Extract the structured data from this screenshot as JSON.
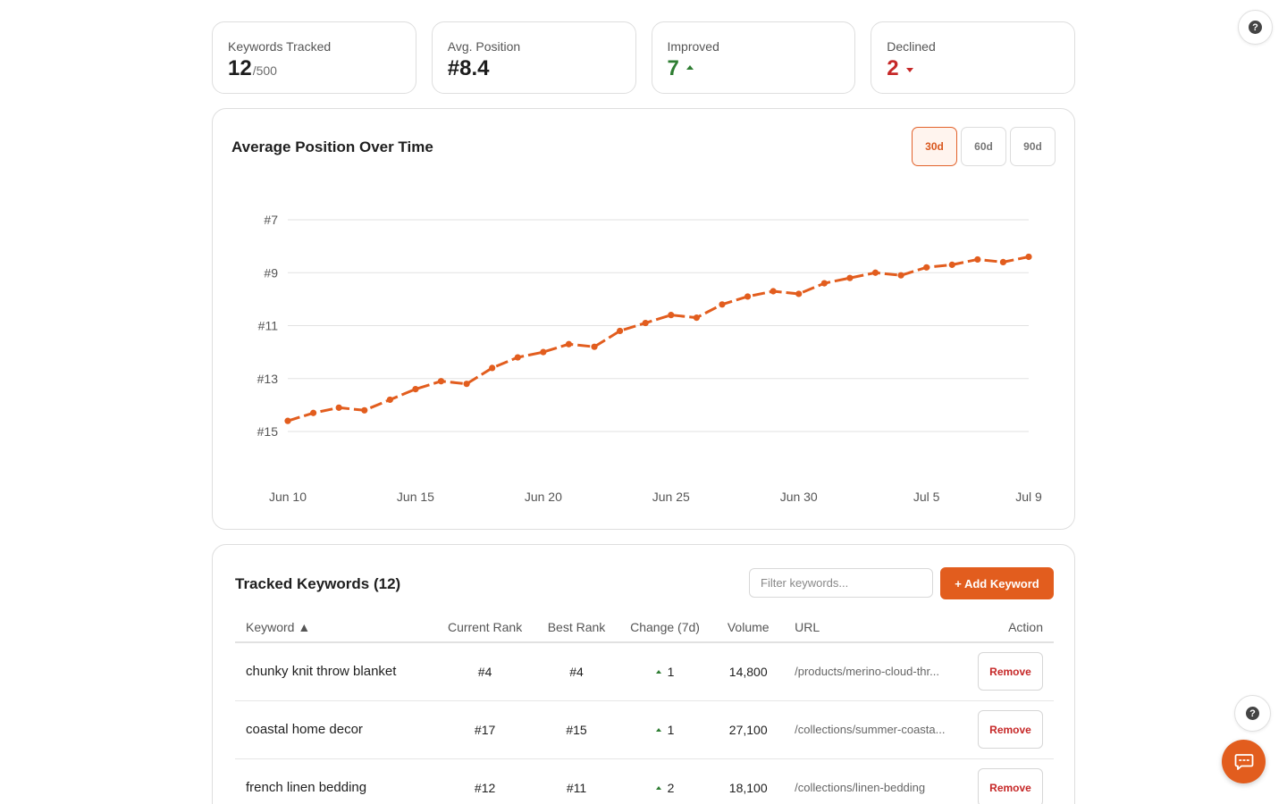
{
  "stats": [
    {
      "label": "Keywords Tracked",
      "value": "12",
      "sub": "/500",
      "tone": "neutral"
    },
    {
      "label": "Avg. Position",
      "value": "#8.4",
      "sub": "",
      "tone": "neutral"
    },
    {
      "label": "Improved",
      "value": "7",
      "sub": "",
      "tone": "up"
    },
    {
      "label": "Declined",
      "value": "2",
      "sub": "",
      "tone": "down"
    }
  ],
  "chart": {
    "title": "Average Position Over Time",
    "ranges": [
      "30d",
      "60d",
      "90d"
    ],
    "active_range": "30d"
  },
  "chart_data": {
    "type": "line",
    "title": "Average Position Over Time",
    "xlabel": "",
    "ylabel": "",
    "y_inverted": true,
    "ylim": [
      15,
      7
    ],
    "y_ticks": [
      "#7",
      "#9",
      "#11",
      "#13",
      "#15"
    ],
    "y_tick_values": [
      7,
      9,
      11,
      13,
      15
    ],
    "x_tick_labels": [
      "Jun 10",
      "Jun 15",
      "Jun 20",
      "Jun 25",
      "Jun 30",
      "Jul 5",
      "Jul 9"
    ],
    "x_tick_indices": [
      0,
      5,
      10,
      15,
      20,
      25,
      29
    ],
    "grid": true,
    "color": "#e25d1e",
    "series": [
      {
        "values": [
          14.6,
          14.3,
          14.1,
          14.2,
          13.8,
          13.4,
          13.1,
          13.2,
          12.6,
          12.2,
          12.0,
          11.7,
          11.8,
          11.2,
          10.9,
          10.6,
          10.7,
          10.2,
          9.9,
          9.7,
          9.8,
          9.4,
          9.2,
          9.0,
          9.1,
          8.8,
          8.7,
          8.5,
          8.6,
          8.4
        ],
        "x": [
          "Jun 10",
          "Jun 11",
          "Jun 12",
          "Jun 13",
          "Jun 14",
          "Jun 15",
          "Jun 16",
          "Jun 17",
          "Jun 18",
          "Jun 19",
          "Jun 20",
          "Jun 21",
          "Jun 22",
          "Jun 23",
          "Jun 24",
          "Jun 25",
          "Jun 26",
          "Jun 27",
          "Jun 28",
          "Jun 29",
          "Jun 30",
          "Jul 1",
          "Jul 2",
          "Jul 3",
          "Jul 4",
          "Jul 5",
          "Jul 6",
          "Jul 7",
          "Jul 8",
          "Jul 9"
        ]
      }
    ]
  },
  "keywords": {
    "title": "Tracked Keywords (12)",
    "filter_placeholder": "Filter keywords...",
    "add_label": "+ Add Keyword",
    "columns": [
      "Keyword ▲",
      "Current Rank",
      "Best Rank",
      "Change (7d)",
      "Volume",
      "URL",
      "Action"
    ],
    "rows": [
      {
        "keyword": "chunky knit throw blanket",
        "current": "#4",
        "best": "#4",
        "change": "1",
        "volume": "14,800",
        "url": "/products/merino-cloud-thr...",
        "action": "Remove"
      },
      {
        "keyword": "coastal home decor",
        "current": "#17",
        "best": "#15",
        "change": "1",
        "volume": "27,100",
        "url": "/collections/summer-coasta...",
        "action": "Remove"
      },
      {
        "keyword": "french linen bedding",
        "current": "#12",
        "best": "#11",
        "change": "2",
        "volume": "18,100",
        "url": "/collections/linen-bedding",
        "action": "Remove"
      }
    ]
  },
  "help_glyph": "?",
  "icons": {
    "help": "help-circle-icon",
    "chat": "chat-bubble-icon",
    "up": "triangle-up-icon",
    "down": "triangle-down-icon"
  }
}
